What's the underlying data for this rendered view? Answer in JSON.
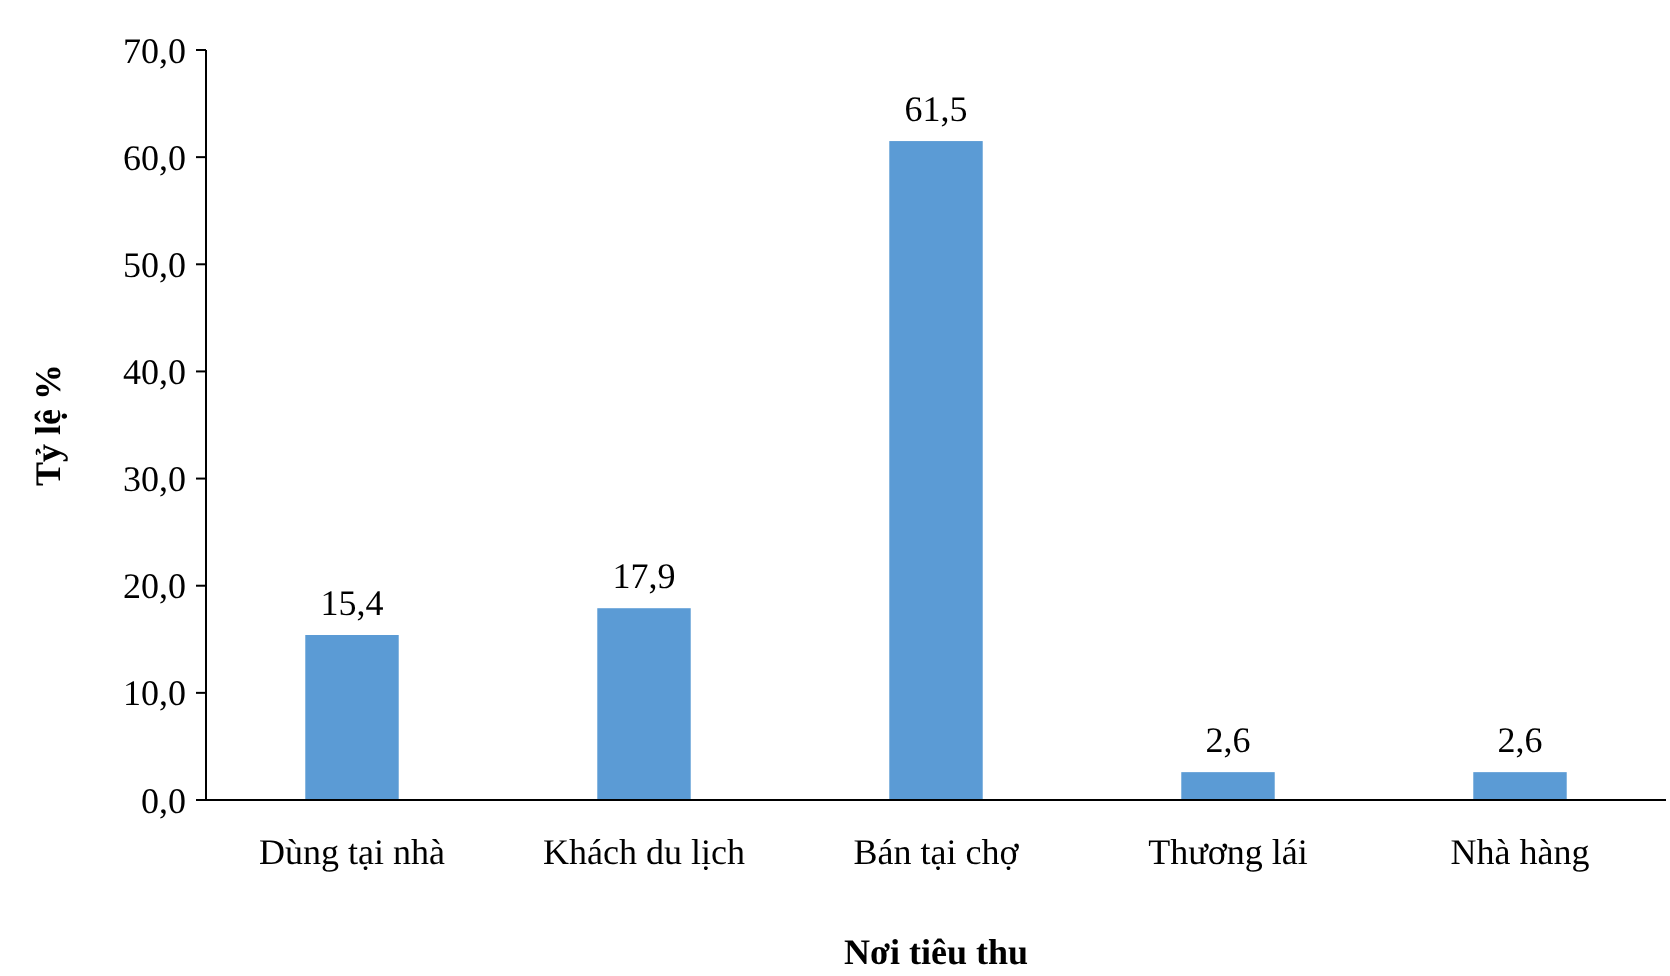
{
  "chart_data": {
    "type": "bar",
    "xlabel": "Nơi tiêu thu",
    "ylabel": "Tỷ lệ %",
    "categories": [
      "Dùng tại nhà",
      "Khách du lịch",
      "Bán tại chợ",
      "Thương lái",
      "Nhà hàng"
    ],
    "values": [
      15.4,
      17.9,
      61.5,
      2.6,
      2.6
    ],
    "color": "#5b9bd5",
    "value_labels": [
      "15,4",
      "17,9",
      "61,5",
      "2,6",
      "2,6"
    ],
    "ylim": [
      0,
      70
    ],
    "yticks": [
      {
        "value": 0,
        "label": "0,0"
      },
      {
        "value": 10,
        "label": "10,0"
      },
      {
        "value": 20,
        "label": "20,0"
      },
      {
        "value": 30,
        "label": "30,0"
      },
      {
        "value": 40,
        "label": "40,0"
      },
      {
        "value": 50,
        "label": "50,0"
      },
      {
        "value": 60,
        "label": "60,0"
      },
      {
        "value": 70,
        "label": "70,0"
      }
    ],
    "grid": false
  }
}
